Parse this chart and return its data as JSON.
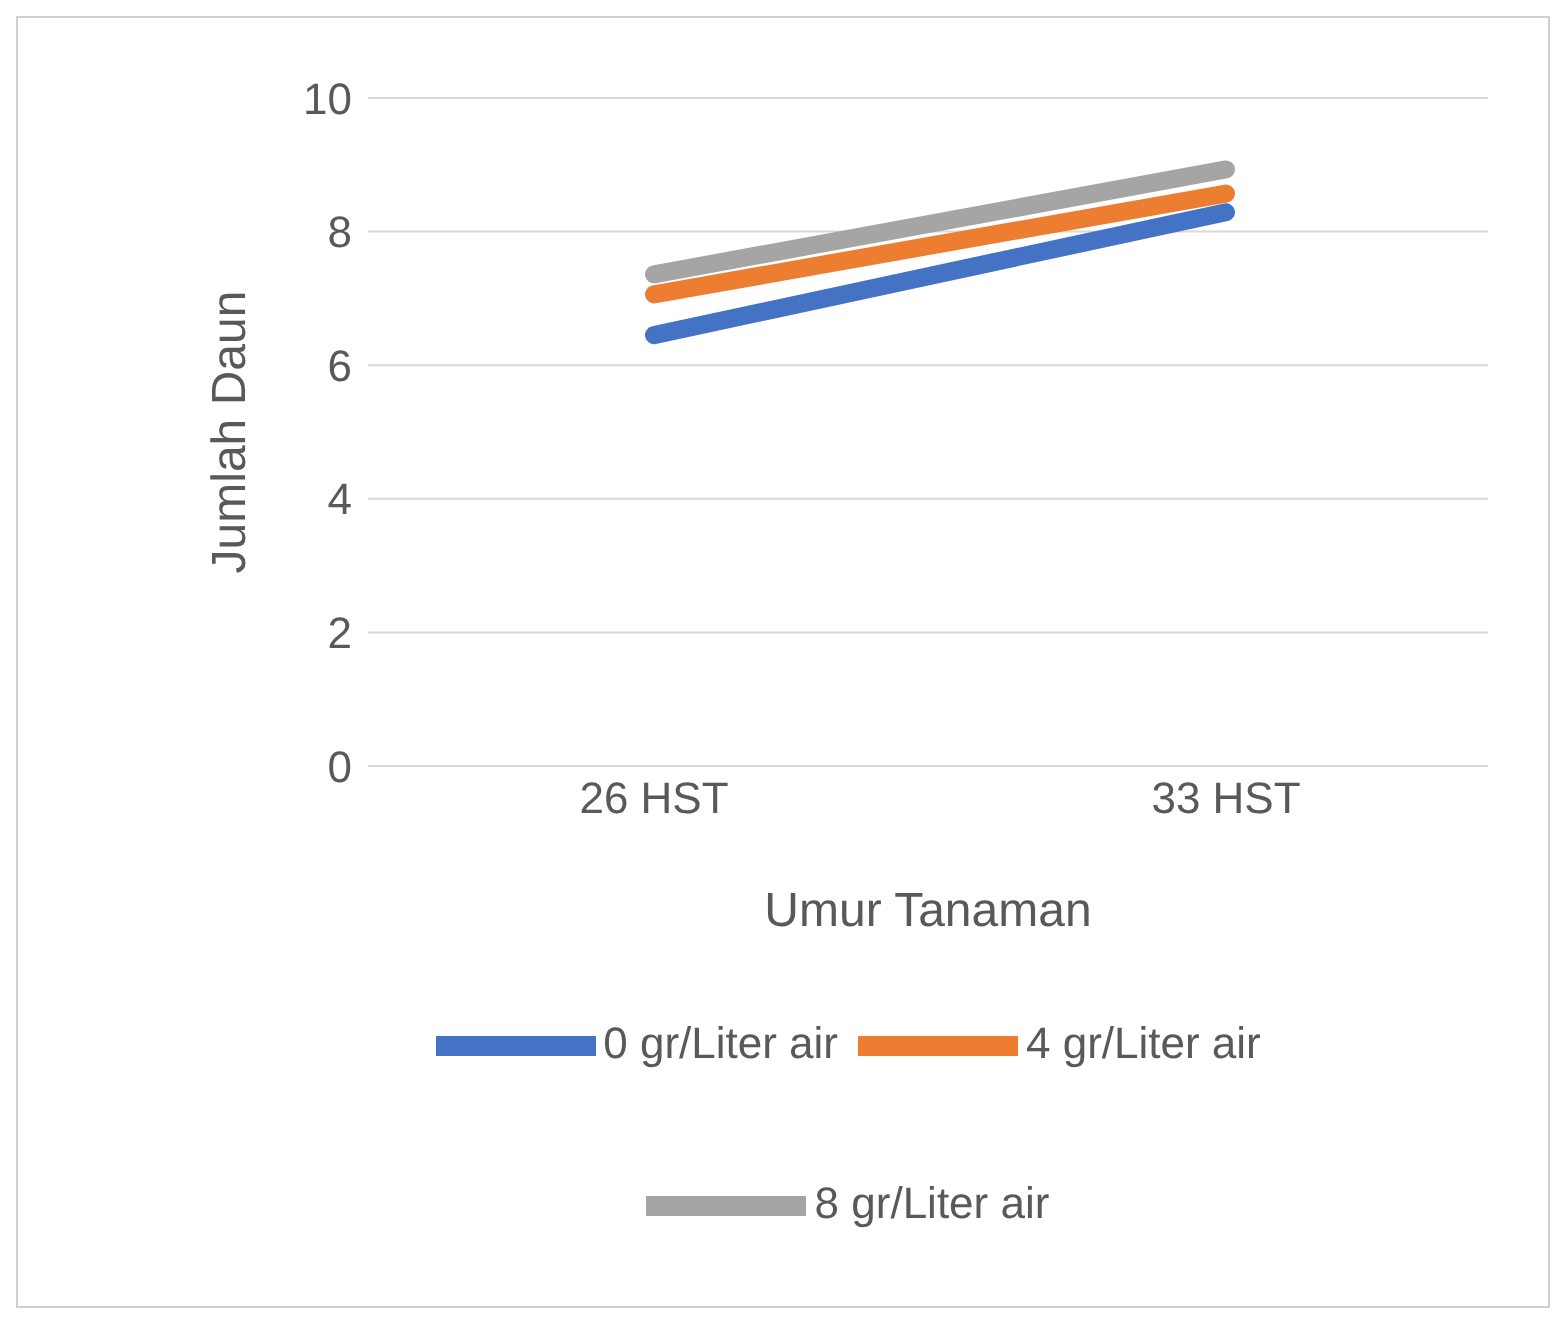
{
  "chart_data": {
    "type": "line",
    "xlabel": "Umur Tanaman",
    "ylabel": "Jumlah Daun",
    "categories": [
      "26 HST",
      "33 HST"
    ],
    "series": [
      {
        "name": "0 gr/Liter air",
        "color": "#4472c4",
        "values": [
          6.45,
          8.29
        ]
      },
      {
        "name": "4 gr/Liter air",
        "color": "#ed7d31",
        "values": [
          7.06,
          8.57
        ]
      },
      {
        "name": "8 gr/Liter air",
        "color": "#a5a5a5",
        "values": [
          7.36,
          8.93
        ]
      }
    ],
    "ylim": [
      0,
      10
    ],
    "yticks": [
      0,
      2,
      4,
      6,
      8,
      10
    ],
    "grid": "y",
    "legend": "bottom",
    "marker": "none",
    "line_style": "solid"
  }
}
